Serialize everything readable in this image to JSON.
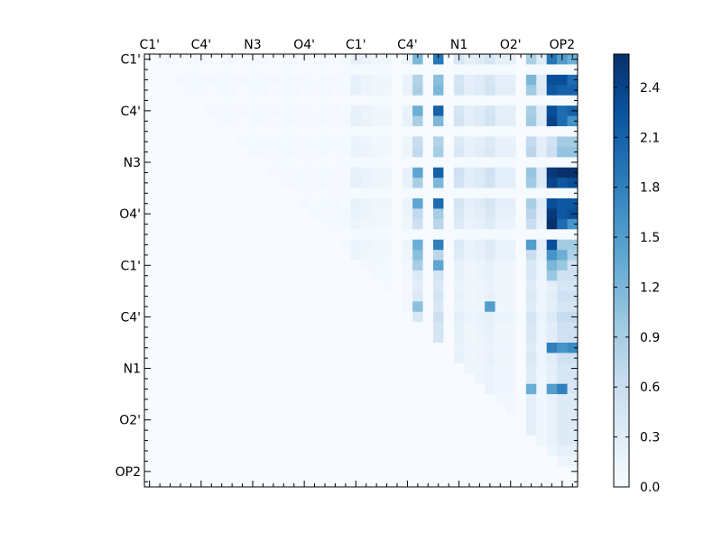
{
  "chart_data": {
    "type": "heatmap",
    "title": "",
    "xlabel": "",
    "ylabel": "",
    "x_tick_labels": [
      "C1'",
      "C4'",
      "N3",
      "O4'",
      "C1'",
      "C4'",
      "N1",
      "O2'",
      "OP2"
    ],
    "y_tick_labels": [
      "C1'",
      "C4'",
      "N3",
      "O4'",
      "C1'",
      "C4'",
      "N1",
      "O2'",
      "OP2"
    ],
    "tick_label_step_cells": 5,
    "matrix_size": 42,
    "colorbar": {
      "colormap": "Blues",
      "vmin": 0.0,
      "vmax": 2.6,
      "tick_values": [
        0.0,
        0.3,
        0.6,
        0.9,
        1.2,
        1.5,
        1.8,
        2.1,
        2.4
      ],
      "tick_labels": [
        "0.0",
        "0.3",
        "0.6",
        "0.9",
        "1.2",
        "1.5",
        "1.8",
        "2.1",
        "2.4"
      ]
    },
    "grid": false,
    "column_profile": [
      0.05,
      0.05,
      0.05,
      0.05,
      0.05,
      0.05,
      0.05,
      0.05,
      0.05,
      0.05,
      0.05,
      0.05,
      0.05,
      0.05,
      0.05,
      0.05,
      0.05,
      0.05,
      0.05,
      0.05,
      0.25,
      0.18,
      0.12,
      0.1,
      0.0,
      0.2,
      1.1,
      0.0,
      1.5,
      0.0,
      0.6,
      0.3,
      0.4,
      0.6,
      0.3,
      0.3,
      0.0,
      1.2,
      0.4,
      0.9,
      1.7,
      1.7
    ],
    "row_profile": [
      1.2,
      0.0,
      1.2,
      1.3,
      0.0,
      1.2,
      1.3,
      0.0,
      0.9,
      1.0,
      0.0,
      1.4,
      1.3,
      0.0,
      1.2,
      1.0,
      0.8,
      0.0,
      0.9,
      0.8,
      0.5,
      0.5,
      0.4,
      0.5,
      0.4,
      0.6,
      0.5,
      0.5,
      0.4,
      0.5,
      0.4,
      0.4,
      0.4,
      0.3,
      0.3,
      0.3,
      0.3,
      0.3,
      0.2,
      0.1,
      0.0,
      0.0
    ],
    "highlight_cells": [
      [
        0,
        26,
        1.2
      ],
      [
        0,
        28,
        1.9
      ],
      [
        0,
        39,
        1.9
      ],
      [
        0,
        40,
        1.5
      ],
      [
        0,
        41,
        1.3
      ],
      [
        2,
        37,
        1.2
      ],
      [
        2,
        39,
        2.3
      ],
      [
        2,
        40,
        2.3
      ],
      [
        2,
        41,
        2.0
      ],
      [
        3,
        39,
        2.2
      ],
      [
        3,
        40,
        2.1
      ],
      [
        3,
        41,
        2.1
      ],
      [
        5,
        26,
        1.3
      ],
      [
        5,
        28,
        2.1
      ],
      [
        5,
        39,
        2.3
      ],
      [
        5,
        40,
        2.0
      ],
      [
        5,
        41,
        2.1
      ],
      [
        6,
        39,
        2.4
      ],
      [
        6,
        40,
        2.0
      ],
      [
        6,
        41,
        1.6
      ],
      [
        11,
        26,
        1.4
      ],
      [
        11,
        28,
        2.1
      ],
      [
        11,
        39,
        2.5
      ],
      [
        11,
        40,
        2.6
      ],
      [
        11,
        41,
        2.6
      ],
      [
        12,
        39,
        2.4
      ],
      [
        12,
        40,
        2.2
      ],
      [
        12,
        41,
        2.3
      ],
      [
        14,
        26,
        1.4
      ],
      [
        14,
        28,
        2.0
      ],
      [
        14,
        39,
        2.3
      ],
      [
        14,
        40,
        2.2
      ],
      [
        14,
        41,
        2.2
      ],
      [
        15,
        39,
        2.5
      ],
      [
        15,
        40,
        2.2
      ],
      [
        15,
        41,
        2.3
      ],
      [
        16,
        39,
        2.6
      ],
      [
        16,
        40,
        2.0
      ],
      [
        16,
        41,
        1.6
      ],
      [
        18,
        26,
        1.3
      ],
      [
        18,
        28,
        1.8
      ],
      [
        18,
        37,
        1.5
      ],
      [
        18,
        39,
        2.3
      ],
      [
        19,
        26,
        1.1
      ],
      [
        19,
        39,
        1.6
      ],
      [
        19,
        40,
        1.3
      ],
      [
        20,
        26,
        0.9
      ],
      [
        20,
        28,
        1.4
      ],
      [
        20,
        39,
        1.2
      ],
      [
        20,
        40,
        1.0
      ],
      [
        21,
        39,
        1.0
      ],
      [
        24,
        33,
        1.5
      ],
      [
        24,
        26,
        1.1
      ],
      [
        28,
        39,
        1.8
      ],
      [
        28,
        40,
        1.6
      ],
      [
        28,
        41,
        1.7
      ],
      [
        32,
        37,
        1.3
      ],
      [
        32,
        39,
        1.5
      ],
      [
        32,
        40,
        1.8
      ]
    ]
  }
}
